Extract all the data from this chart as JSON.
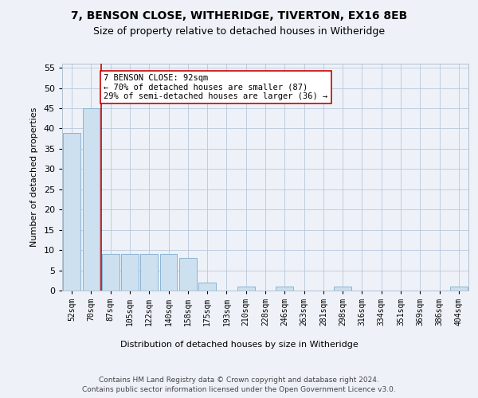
{
  "title1": "7, BENSON CLOSE, WITHERIDGE, TIVERTON, EX16 8EB",
  "title2": "Size of property relative to detached houses in Witheridge",
  "xlabel": "Distribution of detached houses by size in Witheridge",
  "ylabel": "Number of detached properties",
  "bar_labels": [
    "52sqm",
    "70sqm",
    "87sqm",
    "105sqm",
    "122sqm",
    "140sqm",
    "158sqm",
    "175sqm",
    "193sqm",
    "210sqm",
    "228sqm",
    "246sqm",
    "263sqm",
    "281sqm",
    "298sqm",
    "316sqm",
    "334sqm",
    "351sqm",
    "369sqm",
    "386sqm",
    "404sqm"
  ],
  "bar_values": [
    39,
    45,
    9,
    9,
    9,
    9,
    8,
    2,
    0,
    1,
    0,
    1,
    0,
    0,
    1,
    0,
    0,
    0,
    0,
    0,
    1
  ],
  "bar_color": "#cce0f0",
  "bar_edgecolor": "#8ab4d4",
  "vline_x_index": 2,
  "vline_color": "#cc0000",
  "annotation_text": "7 BENSON CLOSE: 92sqm\n← 70% of detached houses are smaller (87)\n29% of semi-detached houses are larger (36) →",
  "annotation_box_color": "#ffffff",
  "annotation_box_edgecolor": "#cc0000",
  "ylim": [
    0,
    56
  ],
  "yticks": [
    0,
    5,
    10,
    15,
    20,
    25,
    30,
    35,
    40,
    45,
    50,
    55
  ],
  "footer1": "Contains HM Land Registry data © Crown copyright and database right 2024.",
  "footer2": "Contains public sector information licensed under the Open Government Licence v3.0.",
  "bg_color": "#eef2f8",
  "plot_bg_color": "#eef2f8"
}
